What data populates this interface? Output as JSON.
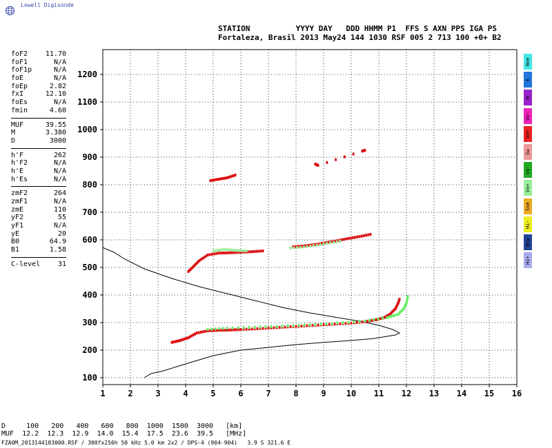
{
  "logo": {
    "text": "Lowell Digisonde",
    "icon": "globe-icon"
  },
  "header": {
    "line1": "STATION          YYYY DAY   DDD HHMM P1  FFS S AXN PPS IGA PS",
    "line2": "Fortaleza, Brasil 2013 May24 144 1030 RSF 005 2 713 100 +0+ B2"
  },
  "params": [
    {
      "label": "foF2",
      "value": "11.70"
    },
    {
      "label": "foF1",
      "value": "N/A"
    },
    {
      "label": "foF1p",
      "value": "N/A"
    },
    {
      "label": "foE",
      "value": "N/A"
    },
    {
      "label": "foEp",
      "value": "2.82"
    },
    {
      "label": "fxI",
      "value": "12.10"
    },
    {
      "label": "foEs",
      "value": "N/A"
    },
    {
      "label": "fmin",
      "value": "4.60"
    },
    {
      "sep": true
    },
    {
      "label": "MUF",
      "value": "39.55"
    },
    {
      "label": "M",
      "value": "3.380"
    },
    {
      "label": "D",
      "value": "3000"
    },
    {
      "sep": true
    },
    {
      "label": "h'F",
      "value": "262"
    },
    {
      "label": "h'F2",
      "value": "N/A"
    },
    {
      "label": "h'E",
      "value": "N/A"
    },
    {
      "label": "h'Es",
      "value": "N/A"
    },
    {
      "sep": true
    },
    {
      "label": "zmF2",
      "value": "264"
    },
    {
      "label": "zmF1",
      "value": "N/A"
    },
    {
      "label": "zmE",
      "value": "110"
    },
    {
      "label": "yF2",
      "value": "55"
    },
    {
      "label": "yF1",
      "value": "N/A"
    },
    {
      "label": "yE",
      "value": "20"
    },
    {
      "label": "B0",
      "value": "64.9"
    },
    {
      "label": "B1",
      "value": "1.58"
    },
    {
      "sep": true
    },
    {
      "label": "C-level",
      "value": "31"
    }
  ],
  "mode_legend": [
    {
      "label": "Nne",
      "color": "#44e8e8"
    },
    {
      "label": "E",
      "color": "#2277dd"
    },
    {
      "label": "W",
      "color": "#9922cc"
    },
    {
      "label": "Vo-",
      "color": "#ee22bb"
    },
    {
      "label": "Vo+",
      "color": "#ee2222"
    },
    {
      "label": "Sw",
      "color": "#ee9999"
    },
    {
      "label": "Vx-",
      "color": "#22aa22"
    },
    {
      "label": "Vx+",
      "color": "#99ee99"
    },
    {
      "label": "Sse",
      "color": "#eeaa22"
    },
    {
      "label": "Hi-",
      "color": "#eeee22"
    },
    {
      "label": "Nnw",
      "color": "#224499"
    },
    {
      "label": "Hi+",
      "color": "#aaaaee"
    }
  ],
  "bottom": {
    "d_line": "D     100   200   400   600   800  1000  1500  3000   [km]",
    "muf_line": "MUF  12.2  12.3  12.9  14.0  15.4  17.5  23.6  39.5   [MHz]",
    "file_line": "FZA0M_2013144103000.RSF / 300fx256h 50 kHz 5.0 km 2x2 / DPS-4 (904-904)   3.9 S 321.6 E"
  },
  "chart_data": {
    "type": "scatter",
    "xlim": [
      1,
      16
    ],
    "ylim": [
      75,
      1290
    ],
    "x_ticks": [
      1,
      2,
      3,
      4,
      5,
      6,
      7,
      8,
      9,
      10,
      11,
      12,
      13,
      14,
      15,
      16
    ],
    "y_ticks": [
      100,
      200,
      300,
      400,
      500,
      600,
      700,
      800,
      900,
      1000,
      1100,
      1200
    ],
    "grid": "dotted",
    "profile_curve": [
      [
        2.5,
        100
      ],
      [
        2.75,
        115
      ],
      [
        3.2,
        125
      ],
      [
        4.0,
        150
      ],
      [
        5.0,
        180
      ],
      [
        6.0,
        200
      ],
      [
        7.0,
        210
      ],
      [
        8.0,
        220
      ],
      [
        9.0,
        228
      ],
      [
        10.0,
        235
      ],
      [
        10.8,
        242
      ],
      [
        11.3,
        250
      ],
      [
        11.6,
        255
      ],
      [
        11.75,
        262
      ],
      [
        11.5,
        275
      ],
      [
        11.0,
        290
      ],
      [
        10.3,
        305
      ],
      [
        9.5,
        318
      ],
      [
        8.5,
        335
      ],
      [
        7.5,
        355
      ],
      [
        6.5,
        380
      ],
      [
        5.5,
        405
      ],
      [
        4.5,
        430
      ],
      [
        3.5,
        460
      ],
      [
        2.5,
        495
      ],
      [
        1.8,
        530
      ],
      [
        1.4,
        555
      ],
      [
        1.0,
        572
      ]
    ],
    "series": [
      {
        "color": "#dd1111",
        "points": [
          [
            3.5,
            228
          ],
          [
            3.8,
            235
          ],
          [
            4.1,
            245
          ],
          [
            4.4,
            262
          ],
          [
            4.8,
            270
          ],
          [
            5.2,
            272
          ],
          [
            5.6,
            273
          ],
          [
            6.0,
            275
          ],
          [
            6.5,
            277
          ],
          [
            7.0,
            280
          ],
          [
            7.5,
            283
          ],
          [
            8.0,
            286
          ],
          [
            8.5,
            289
          ],
          [
            9.0,
            292
          ],
          [
            9.5,
            295
          ],
          [
            10.0,
            298
          ],
          [
            10.5,
            303
          ],
          [
            10.9,
            310
          ],
          [
            11.2,
            318
          ],
          [
            11.4,
            330
          ],
          [
            11.6,
            350
          ],
          [
            11.7,
            370
          ],
          [
            11.75,
            385
          ]
        ]
      },
      {
        "color": "#66ee66",
        "points": [
          [
            4.8,
            275
          ],
          [
            5.5,
            280
          ],
          [
            6.5,
            283
          ],
          [
            7.5,
            287
          ],
          [
            8.5,
            292
          ],
          [
            9.5,
            298
          ],
          [
            10.5,
            306
          ],
          [
            11.3,
            318
          ],
          [
            11.7,
            330
          ],
          [
            11.9,
            350
          ],
          [
            12.0,
            370
          ],
          [
            12.05,
            395
          ]
        ]
      },
      {
        "color": "#dd1111",
        "points": [
          [
            4.1,
            485
          ],
          [
            4.3,
            505
          ],
          [
            4.5,
            525
          ],
          [
            4.8,
            545
          ],
          [
            5.2,
            552
          ],
          [
            5.6,
            553
          ],
          [
            6.0,
            555
          ],
          [
            6.4,
            557
          ],
          [
            6.8,
            560
          ]
        ]
      },
      {
        "color": "#99ee99",
        "points": [
          [
            5.0,
            560
          ],
          [
            5.4,
            565
          ],
          [
            5.8,
            562
          ],
          [
            6.2,
            560
          ]
        ]
      },
      {
        "color": "#dd1111",
        "points": [
          [
            7.9,
            575
          ],
          [
            8.3,
            578
          ],
          [
            8.7,
            583
          ],
          [
            9.1,
            590
          ],
          [
            9.5,
            597
          ],
          [
            9.9,
            605
          ],
          [
            10.3,
            612
          ],
          [
            10.7,
            620
          ]
        ]
      },
      {
        "color": "#99ee99",
        "points": [
          [
            7.8,
            570
          ],
          [
            8.4,
            575
          ],
          [
            9.0,
            585
          ],
          [
            9.6,
            595
          ]
        ]
      },
      {
        "color": "#dd1111",
        "points": [
          [
            4.9,
            815
          ],
          [
            5.2,
            820
          ],
          [
            5.5,
            825
          ],
          [
            5.8,
            835
          ]
        ]
      },
      {
        "color": "#dd1111",
        "points": [
          [
            8.7,
            875
          ],
          [
            8.8,
            870
          ],
          [
            10.4,
            922
          ],
          [
            10.5,
            925
          ]
        ]
      }
    ]
  }
}
